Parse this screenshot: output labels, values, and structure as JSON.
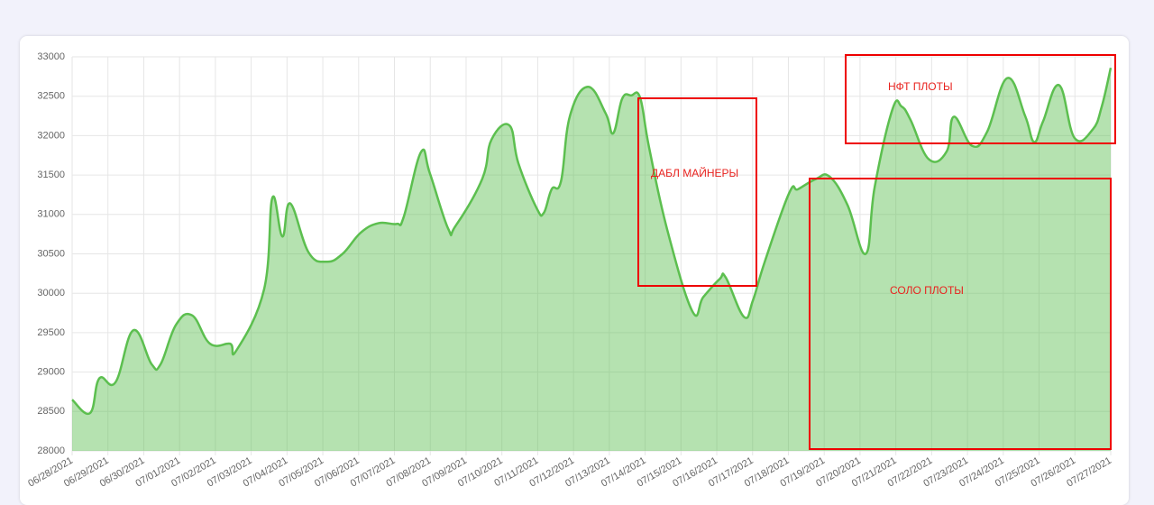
{
  "chart_data": {
    "type": "area",
    "x": [
      0,
      0.5,
      0.76,
      1.21,
      1.71,
      2.22,
      2.47,
      2.9,
      3.35,
      3.85,
      4.41,
      4.58,
      5.36,
      5.59,
      5.87,
      6.09,
      6.6,
      7.1,
      7.55,
      8.06,
      8.56,
      9.06,
      9.26,
      9.74,
      9.99,
      10.5,
      10.7,
      11.45,
      11.71,
      12.21,
      12.46,
      12.97,
      13.17,
      13.39,
      13.65,
      13.9,
      14.4,
      14.9,
      15.11,
      15.36,
      15.61,
      15.86,
      16.11,
      16.62,
      17.32,
      17.62,
      18.08,
      18.25,
      18.76,
      19.01,
      19.34,
      20.02,
      20.27,
      20.77,
      21.15,
      21.65,
      22.16,
      22.41,
      22.91,
      23.16,
      23.41,
      23.92,
      24.42,
      24.62,
      25.13,
      25.55,
      26.11,
      26.61,
      26.86,
      27.11,
      27.56,
      27.99,
      28.5,
      28.75,
      29
    ],
    "values": [
      28650,
      28480,
      28920,
      28870,
      29530,
      29100,
      29100,
      29600,
      29720,
      29360,
      29360,
      29270,
      30050,
      31210,
      30720,
      31140,
      30520,
      30400,
      30500,
      30770,
      30890,
      30880,
      30970,
      31790,
      31520,
      30820,
      30850,
      31450,
      31950,
      32130,
      31650,
      31080,
      31020,
      31320,
      31420,
      32250,
      32620,
      32280,
      32030,
      32470,
      32510,
      32480,
      31850,
      30800,
      29770,
      29950,
      30180,
      30200,
      29700,
      29910,
      30400,
      31270,
      31320,
      31450,
      31480,
      31120,
      30500,
      31350,
      32340,
      32370,
      32200,
      31700,
      31800,
      32240,
      31870,
      32050,
      32730,
      32250,
      31920,
      32180,
      32640,
      31970,
      32080,
      32370,
      32860
    ],
    "color": "#5cbf4f",
    "xlim": [
      0,
      29
    ],
    "xticks": [
      {
        "value": 0,
        "label": "06/28/2021"
      },
      {
        "value": 1,
        "label": "06/29/2021"
      },
      {
        "value": 2,
        "label": "06/30/2021"
      },
      {
        "value": 3,
        "label": "07/01/2021"
      },
      {
        "value": 4,
        "label": "07/02/2021"
      },
      {
        "value": 5,
        "label": "07/03/2021"
      },
      {
        "value": 6,
        "label": "07/04/2021"
      },
      {
        "value": 7,
        "label": "07/05/2021"
      },
      {
        "value": 8,
        "label": "07/06/2021"
      },
      {
        "value": 9,
        "label": "07/07/2021"
      },
      {
        "value": 10,
        "label": "07/08/2021"
      },
      {
        "value": 11,
        "label": "07/09/2021"
      },
      {
        "value": 12,
        "label": "07/10/2021"
      },
      {
        "value": 13,
        "label": "07/11/2021"
      },
      {
        "value": 14,
        "label": "07/12/2021"
      },
      {
        "value": 15,
        "label": "07/13/2021"
      },
      {
        "value": 16,
        "label": "07/14/2021"
      },
      {
        "value": 17,
        "label": "07/15/2021"
      },
      {
        "value": 18,
        "label": "07/16/2021"
      },
      {
        "value": 19,
        "label": "07/17/2021"
      },
      {
        "value": 20,
        "label": "07/18/2021"
      },
      {
        "value": 21,
        "label": "07/19/2021"
      },
      {
        "value": 22,
        "label": "07/20/2021"
      },
      {
        "value": 23,
        "label": "07/21/2021"
      },
      {
        "value": 24,
        "label": "07/22/2021"
      },
      {
        "value": 25,
        "label": "07/23/2021"
      },
      {
        "value": 26,
        "label": "07/24/2021"
      },
      {
        "value": 27,
        "label": "07/25/2021"
      },
      {
        "value": 28,
        "label": "07/26/2021"
      },
      {
        "value": 29,
        "label": "07/27/2021"
      }
    ],
    "ylim": [
      28000,
      33000
    ],
    "yticks": [
      28000,
      28500,
      29000,
      29500,
      30000,
      30500,
      31000,
      31500,
      32000,
      32500,
      33000
    ],
    "grid": true,
    "annotations": [
      "ДАБЛ МАЙНЕРЫ",
      "НФТ ПЛОТЫ",
      "СОЛО ПЛОТЫ"
    ]
  }
}
